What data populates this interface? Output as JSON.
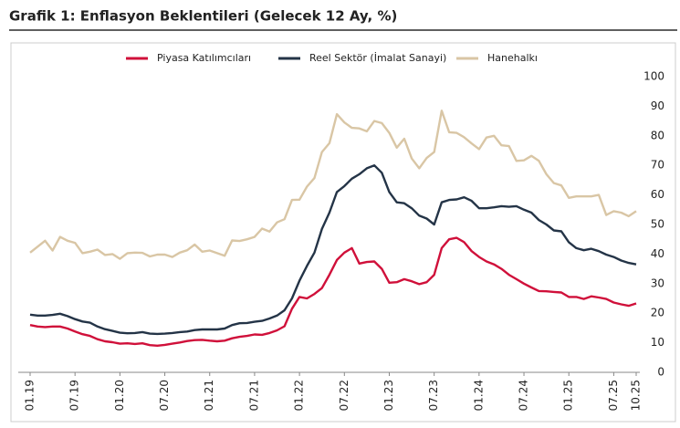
{
  "chart_data": {
    "type": "line",
    "title": "Grafik 1: Enflasyon Beklentileri (Gelecek 12 Ay, %)",
    "categories": [
      "01.19",
      null,
      null,
      null,
      null,
      null,
      "07.19",
      null,
      null,
      null,
      null,
      null,
      "01.20",
      null,
      null,
      null,
      null,
      null,
      "07.20",
      null,
      null,
      null,
      null,
      null,
      "01.21",
      null,
      null,
      null,
      null,
      null,
      "07.21",
      null,
      null,
      null,
      null,
      null,
      "01.22",
      null,
      null,
      null,
      null,
      null,
      "07.22",
      null,
      null,
      null,
      null,
      null,
      "01.23",
      null,
      null,
      null,
      null,
      null,
      "07.23",
      null,
      null,
      null,
      null,
      null,
      "01.24",
      null,
      null,
      null,
      null,
      null,
      "07.24",
      null,
      null,
      null,
      null,
      null,
      "01.25",
      null,
      null,
      null,
      null,
      null,
      "07.25",
      null,
      null,
      "10.25"
    ],
    "series": [
      {
        "name": "Piyasa Katılımcıları",
        "color": "#d0103a",
        "values": [
          16,
          15.5,
          15.3,
          15.5,
          15.5,
          14.8,
          13.8,
          12.9,
          12.3,
          11.2,
          10.5,
          10.2,
          9.7,
          9.8,
          9.6,
          9.8,
          9.2,
          9.0,
          9.3,
          9.7,
          10.1,
          10.6,
          10.9,
          11.0,
          10.7,
          10.5,
          10.7,
          11.5,
          12.0,
          12.3,
          12.8,
          12.7,
          13.3,
          14.2,
          15.6,
          21.5,
          25.5,
          25,
          26.5,
          28.5,
          33,
          38,
          40.5,
          42,
          36.8,
          37.3,
          37.5,
          35,
          30.3,
          30.5,
          31.5,
          30.8,
          29.8,
          30.5,
          33,
          42,
          45,
          45.5,
          44,
          41,
          39,
          37.5,
          36.5,
          35,
          33,
          31.5,
          30,
          28.7,
          27.5,
          27.4,
          27.2,
          27,
          25.5,
          25.5,
          24.8,
          25.7,
          25.3,
          24.8,
          23.6,
          23,
          22.5,
          23.3
        ]
      },
      {
        "name": "Reel Sektör (İmalat Sanayi)",
        "color": "#243447",
        "values": [
          19.5,
          19.2,
          19.2,
          19.4,
          19.8,
          19.0,
          18,
          17.2,
          16.8,
          15.5,
          14.6,
          14.0,
          13.4,
          13.2,
          13.3,
          13.6,
          13.1,
          13.0,
          13.1,
          13.3,
          13.6,
          13.8,
          14.3,
          14.5,
          14.5,
          14.5,
          14.8,
          16,
          16.6,
          16.7,
          17.1,
          17.4,
          18.2,
          19.2,
          21,
          25,
          31,
          36,
          40.5,
          48.5,
          54,
          61,
          63,
          65.5,
          67,
          69,
          70,
          67.5,
          61,
          57.5,
          57.2,
          55.5,
          53,
          52,
          50,
          57.5,
          58.3,
          58.5,
          59.2,
          58,
          55.5,
          55.5,
          55.8,
          56.2,
          56,
          56.2,
          55,
          54,
          51.5,
          50,
          48,
          47.7,
          44,
          42,
          41.3,
          41.8,
          41,
          39.8,
          39,
          37.8,
          37,
          36.5
        ]
      },
      {
        "name": "Hanehalkı",
        "color": "#d9c6a5",
        "values": [
          40.5,
          42.5,
          44.5,
          41.2,
          45.8,
          44.5,
          43.8,
          40.3,
          40.8,
          41.5,
          39.7,
          40.0,
          38.4,
          40.3,
          40.5,
          40.4,
          39.2,
          39.8,
          39.8,
          39.0,
          40.5,
          41.3,
          43.2,
          40.8,
          41.2,
          40.3,
          39.4,
          44.6,
          44.4,
          45.0,
          45.8,
          48.6,
          47.6,
          50.7,
          51.8,
          58.3,
          58.4,
          62.8,
          65.7,
          74.5,
          77.5,
          87.3,
          84.5,
          82.7,
          82.5,
          81.5,
          85,
          84.3,
          81,
          76,
          79,
          72.3,
          69,
          72.5,
          74.5,
          88.5,
          81.2,
          81,
          79.5,
          77.4,
          75.5,
          79.4,
          80,
          76.8,
          76.5,
          71.5,
          71.7,
          73.2,
          71.5,
          67,
          64,
          63.2,
          59,
          59.5,
          59.5,
          59.5,
          60,
          53.2,
          54.5,
          54,
          52.8,
          54.5
        ]
      }
    ],
    "ylim": [
      0,
      100
    ],
    "yticks": [
      0,
      10,
      20,
      30,
      40,
      50,
      60,
      70,
      80,
      90,
      100
    ],
    "grid": false,
    "legend": "top"
  }
}
